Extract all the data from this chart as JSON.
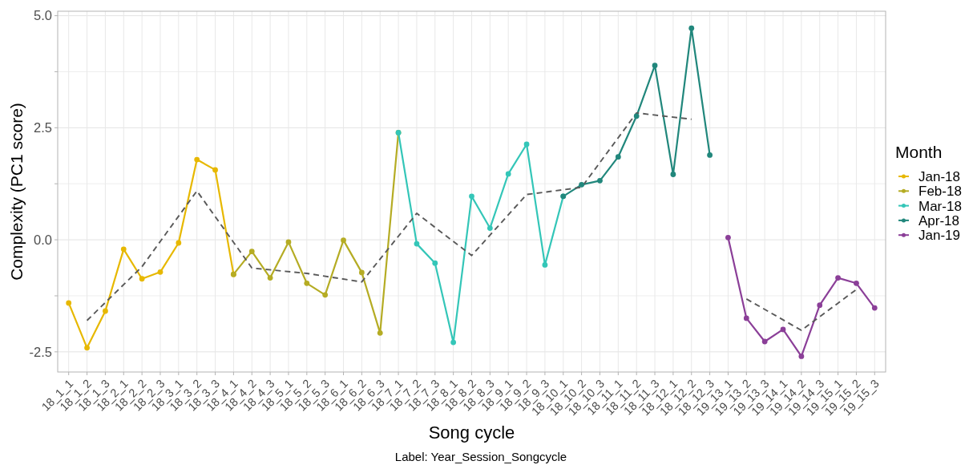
{
  "chart_data": {
    "type": "line",
    "xlabel": "Song cycle",
    "ylabel": "Complexity (PC1 score)",
    "legend_title": "Month",
    "annotations": [
      "Label: Year_Session_Songcycle"
    ],
    "categories": [
      "18_1_1",
      "18_1_2",
      "18_1_3",
      "18_2_1",
      "18_2_2",
      "18_2_3",
      "18_3_1",
      "18_3_2",
      "18_3_3",
      "18_4_1",
      "18_4_2",
      "18_4_3",
      "18_5_1",
      "18_5_2",
      "18_5_3",
      "18_6_1",
      "18_6_2",
      "18_6_3",
      "18_7_1",
      "18_7_2",
      "18_7_3",
      "18_8_1",
      "18_8_2",
      "18_8_3",
      "18_9_1",
      "18_9_2",
      "18_9_3",
      "18_10_1",
      "18_10_2",
      "18_10_3",
      "18_11_1",
      "18_11_2",
      "18_11_3",
      "18_12_1",
      "18_12_2",
      "18_12_3",
      "19_13_1",
      "19_13_2",
      "19_13_3",
      "19_14_1",
      "19_14_2",
      "19_14_3",
      "19_15_1",
      "19_15_2",
      "19_15_3"
    ],
    "series": [
      {
        "name": "Jan-18",
        "color": "#e7b800",
        "x": [
          "18_1_1",
          "18_1_2",
          "18_1_3",
          "18_2_1",
          "18_2_2",
          "18_2_3",
          "18_3_1",
          "18_3_2",
          "18_3_3",
          "18_4_1"
        ],
        "values": [
          -1.41,
          -2.41,
          -1.59,
          -0.21,
          -0.87,
          -0.72,
          -0.07,
          1.79,
          1.56,
          -0.77
        ]
      },
      {
        "name": "Feb-18",
        "color": "#b5ac24",
        "x": [
          "18_4_1",
          "18_4_2",
          "18_4_3",
          "18_5_1",
          "18_5_2",
          "18_5_3",
          "18_6_1",
          "18_6_2",
          "18_6_3",
          "18_7_1"
        ],
        "values": [
          -0.77,
          -0.26,
          -0.85,
          -0.05,
          -0.97,
          -1.23,
          -0.01,
          -0.73,
          -2.08,
          2.39
        ]
      },
      {
        "name": "Mar-18",
        "color": "#34c6b8",
        "x": [
          "18_7_1",
          "18_7_2",
          "18_7_3",
          "18_8_1",
          "18_8_2",
          "18_8_3",
          "18_9_1",
          "18_9_2",
          "18_9_3",
          "18_10_1"
        ],
        "values": [
          2.39,
          -0.09,
          -0.52,
          -2.29,
          0.97,
          0.26,
          1.47,
          2.13,
          -0.56,
          0.97
        ]
      },
      {
        "name": "Apr-18",
        "color": "#21877c",
        "x": [
          "18_10_1",
          "18_10_2",
          "18_10_3",
          "18_11_1",
          "18_11_2",
          "18_11_3",
          "18_12_1",
          "18_12_2",
          "18_12_3"
        ],
        "values": [
          0.97,
          1.23,
          1.32,
          1.85,
          2.76,
          3.89,
          1.46,
          4.72,
          1.89
        ]
      },
      {
        "name": "Jan-19",
        "color": "#8b3f98",
        "x": [
          "19_13_1",
          "19_13_2",
          "19_13_3",
          "19_14_1",
          "19_14_2",
          "19_14_3",
          "19_15_1",
          "19_15_2",
          "19_15_3"
        ],
        "values": [
          0.05,
          -1.75,
          -2.27,
          -2.0,
          -2.6,
          -1.46,
          -0.85,
          -0.97,
          -1.52
        ]
      },
      {
        "type": "line",
        "color": "#595959",
        "line_style": "dashed",
        "marker": "none",
        "x": [
          "18_1_2",
          "18_2_2",
          "18_3_2",
          "18_4_2",
          "18_5_2",
          "18_6_2",
          "18_7_2",
          "18_8_2",
          "18_9_2",
          "18_10_2",
          "18_11_2",
          "18_12_2"
        ],
        "values": [
          -1.8,
          -0.6,
          1.09,
          -0.63,
          -0.75,
          -0.94,
          0.59,
          -0.35,
          1.01,
          1.17,
          2.83,
          2.69
        ]
      },
      {
        "type": "line",
        "color": "#595959",
        "line_style": "dashed",
        "marker": "none",
        "x": [
          "19_13_2",
          "19_14_2",
          "19_15_2"
        ],
        "values": [
          -1.32,
          -2.02,
          -1.11
        ]
      }
    ],
    "ylim": [
      -2.95,
      5.1
    ],
    "yticks": [
      {
        "value": -2.5,
        "label": "-2.5"
      },
      {
        "value": -1.25,
        "label": null
      },
      {
        "value": 0,
        "label": "0.0"
      },
      {
        "value": 1.25,
        "label": null
      },
      {
        "value": 2.5,
        "label": "2.5"
      },
      {
        "value": 3.75,
        "label": null
      },
      {
        "value": 5,
        "label": "5.0"
      }
    ],
    "grid": true,
    "legend": "right",
    "marker": "circle",
    "line_style": "solid"
  }
}
